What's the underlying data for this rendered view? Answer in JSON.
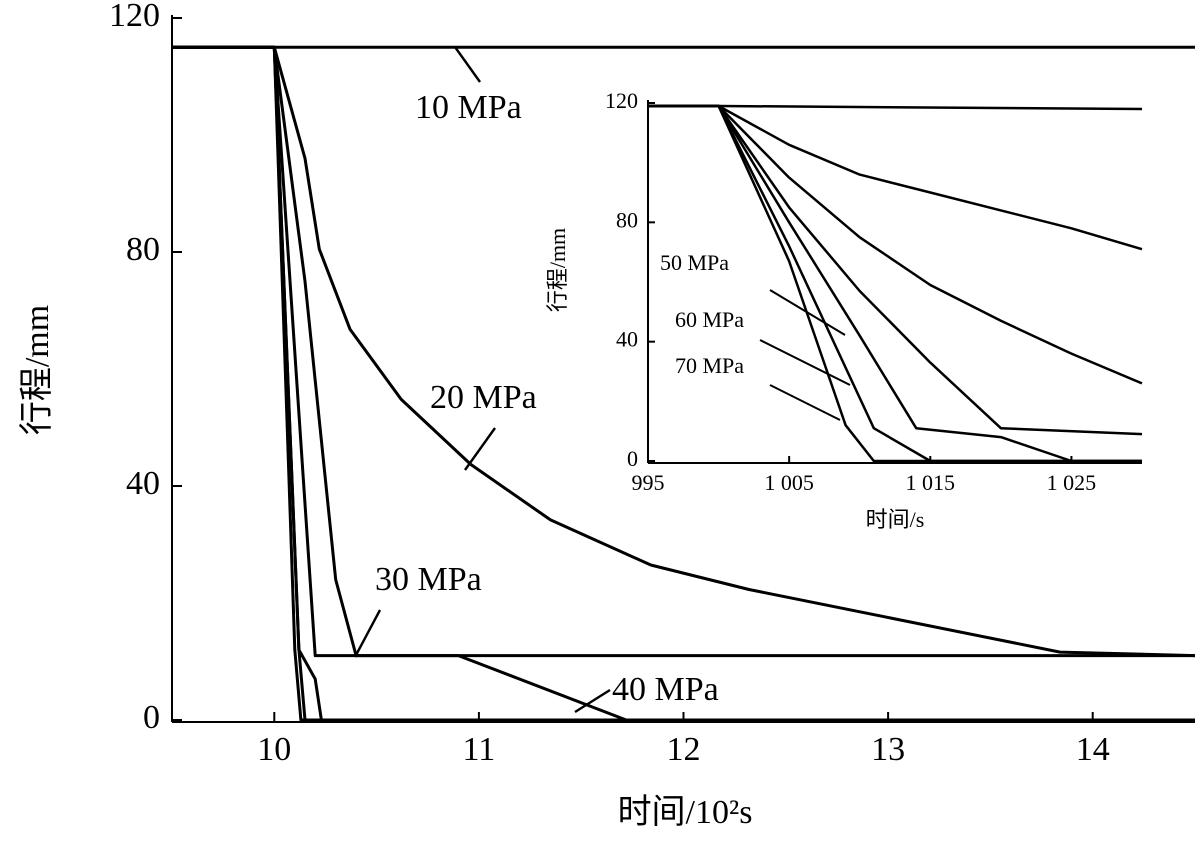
{
  "chart_data": [
    {
      "type": "line",
      "x_label": "时间/10²s",
      "y_label": "行程/mm",
      "xlim": [
        9.5,
        14.5
      ],
      "ylim": [
        0,
        120
      ],
      "xticks": [
        10,
        11,
        12,
        13,
        14
      ],
      "yticks": [
        0,
        40,
        80,
        120
      ],
      "color": "#000000",
      "series": [
        {
          "name": "10 MPa",
          "x": [
            9.5,
            14.5
          ],
          "values": [
            115,
            115
          ]
        },
        {
          "name": "20 MPa",
          "x": [
            9.5,
            10.0,
            10.15,
            10.22,
            10.37,
            10.62,
            10.96,
            11.35,
            11.84,
            12.32,
            13.06,
            13.84,
            14.5
          ],
          "values": [
            115,
            115,
            96,
            80.5,
            66.8,
            54.8,
            43.7,
            34.2,
            26.5,
            22.3,
            17.1,
            11.6,
            11
          ]
        },
        {
          "name": "30 MPa",
          "x": [
            9.5,
            10.0,
            10.15,
            10.3,
            10.4,
            14.5
          ],
          "values": [
            115,
            115,
            75,
            24,
            11,
            11
          ]
        },
        {
          "name": "40 MPa",
          "x": [
            9.5,
            10.0,
            10.2,
            10.9,
            11.72,
            14.5
          ],
          "values": [
            115,
            115,
            11,
            11,
            0,
            0
          ]
        },
        {
          "x": [
            9.5,
            10.0,
            10.12,
            10.2,
            10.23,
            14.5
          ],
          "values": [
            115,
            115,
            12,
            7,
            0,
            0
          ]
        },
        {
          "x": [
            9.5,
            10.0,
            10.12,
            10.15,
            14.5
          ],
          "values": [
            115,
            115,
            12,
            0,
            0
          ]
        },
        {
          "x": [
            9.5,
            10.0,
            10.1,
            10.13,
            14.5
          ],
          "values": [
            115,
            115,
            12,
            0,
            0
          ]
        }
      ]
    },
    {
      "type": "line",
      "x_label": "时间/s",
      "y_label": "行程/mm",
      "xlim": [
        995,
        1030
      ],
      "ylim": [
        0,
        120
      ],
      "xticks": [
        995,
        {
          "value": 1005,
          "label": "1 005"
        },
        {
          "value": 1015,
          "label": "1 015"
        },
        {
          "value": 1025,
          "label": "1 025"
        }
      ],
      "yticks": [
        0,
        40,
        80,
        120
      ],
      "color": "#000000",
      "series": [
        {
          "x": [
            995,
            1000,
            1030
          ],
          "values": [
            119,
            119,
            118
          ]
        },
        {
          "x": [
            995,
            1000,
            1005,
            1010,
            1015,
            1020,
            1025,
            1030
          ],
          "values": [
            119,
            119,
            106,
            96,
            90,
            84,
            78,
            71
          ]
        },
        {
          "x": [
            995,
            1000,
            1005,
            1010,
            1015,
            1020,
            1025,
            1030
          ],
          "values": [
            119,
            119,
            95,
            75,
            59,
            47,
            36,
            26
          ]
        },
        {
          "x": [
            995,
            1000,
            1005,
            1010,
            1015,
            1020,
            1030
          ],
          "values": [
            119,
            119,
            85,
            57,
            33,
            11,
            9
          ]
        },
        {
          "name": "50 MPa",
          "x": [
            995,
            1000,
            1005,
            1010,
            1014,
            1020,
            1025,
            1030
          ],
          "values": [
            119,
            119,
            80,
            42,
            11,
            8,
            0,
            0
          ]
        },
        {
          "name": "60 MPa",
          "x": [
            995,
            1000,
            1005,
            1011,
            1015,
            1030
          ],
          "values": [
            119,
            119,
            72,
            11,
            0,
            0
          ]
        },
        {
          "name": "70 MPa",
          "x": [
            995,
            1000,
            1005,
            1009,
            1011,
            1030
          ],
          "values": [
            119,
            119,
            67,
            12,
            0,
            0
          ]
        }
      ]
    }
  ]
}
